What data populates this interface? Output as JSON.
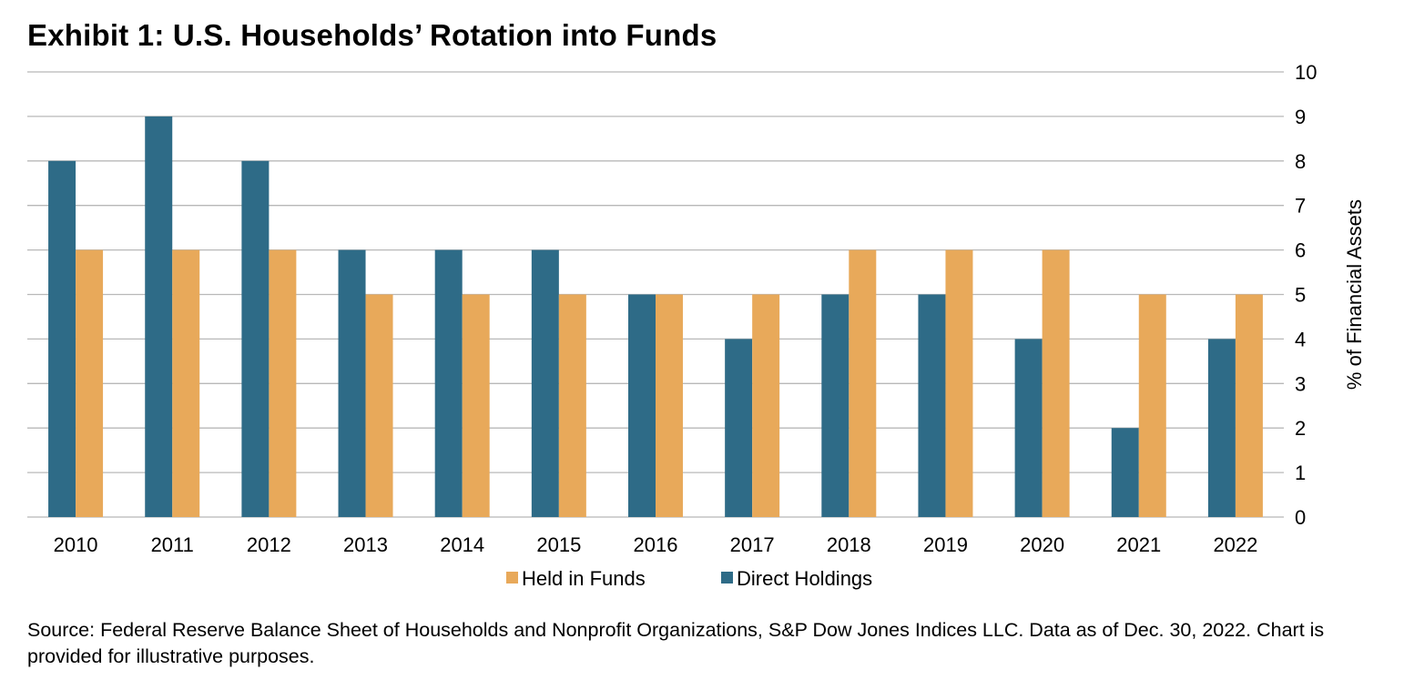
{
  "title": "Exhibit 1: U.S. Households’ Rotation into Funds",
  "source_note": "Source: Federal Reserve Balance Sheet of Households and Nonprofit Organizations, S&P Dow Jones Indices LLC. Data as of Dec. 30, 2022. Chart is provided for illustrative purposes.",
  "colors": {
    "direct": "#2e6b87",
    "funds": "#e8a95a",
    "grid": "#b8b8b8"
  },
  "chart_data": {
    "type": "bar",
    "categories": [
      "2010",
      "2011",
      "2012",
      "2013",
      "2014",
      "2015",
      "2016",
      "2017",
      "2018",
      "2019",
      "2020",
      "2021",
      "2022"
    ],
    "series": [
      {
        "name": "Direct Holdings",
        "values": [
          8,
          9,
          8,
          6,
          6,
          6,
          5,
          4,
          5,
          5,
          4,
          2,
          4
        ]
      },
      {
        "name": "Held in Funds",
        "values": [
          6,
          6,
          6,
          5,
          5,
          5,
          5,
          5,
          6,
          6,
          6,
          5,
          5
        ]
      }
    ],
    "legend_order": [
      "Held in Funds",
      "Direct Holdings"
    ],
    "ylabel": "% of Financial Assets",
    "xlabel": "",
    "ylim": [
      0,
      10
    ],
    "yticks": [
      "0",
      "1",
      "2",
      "3",
      "4",
      "5",
      "6",
      "7",
      "8",
      "9",
      "10"
    ],
    "y_axis_side": "right",
    "grid": true,
    "legend_position": "bottom"
  }
}
